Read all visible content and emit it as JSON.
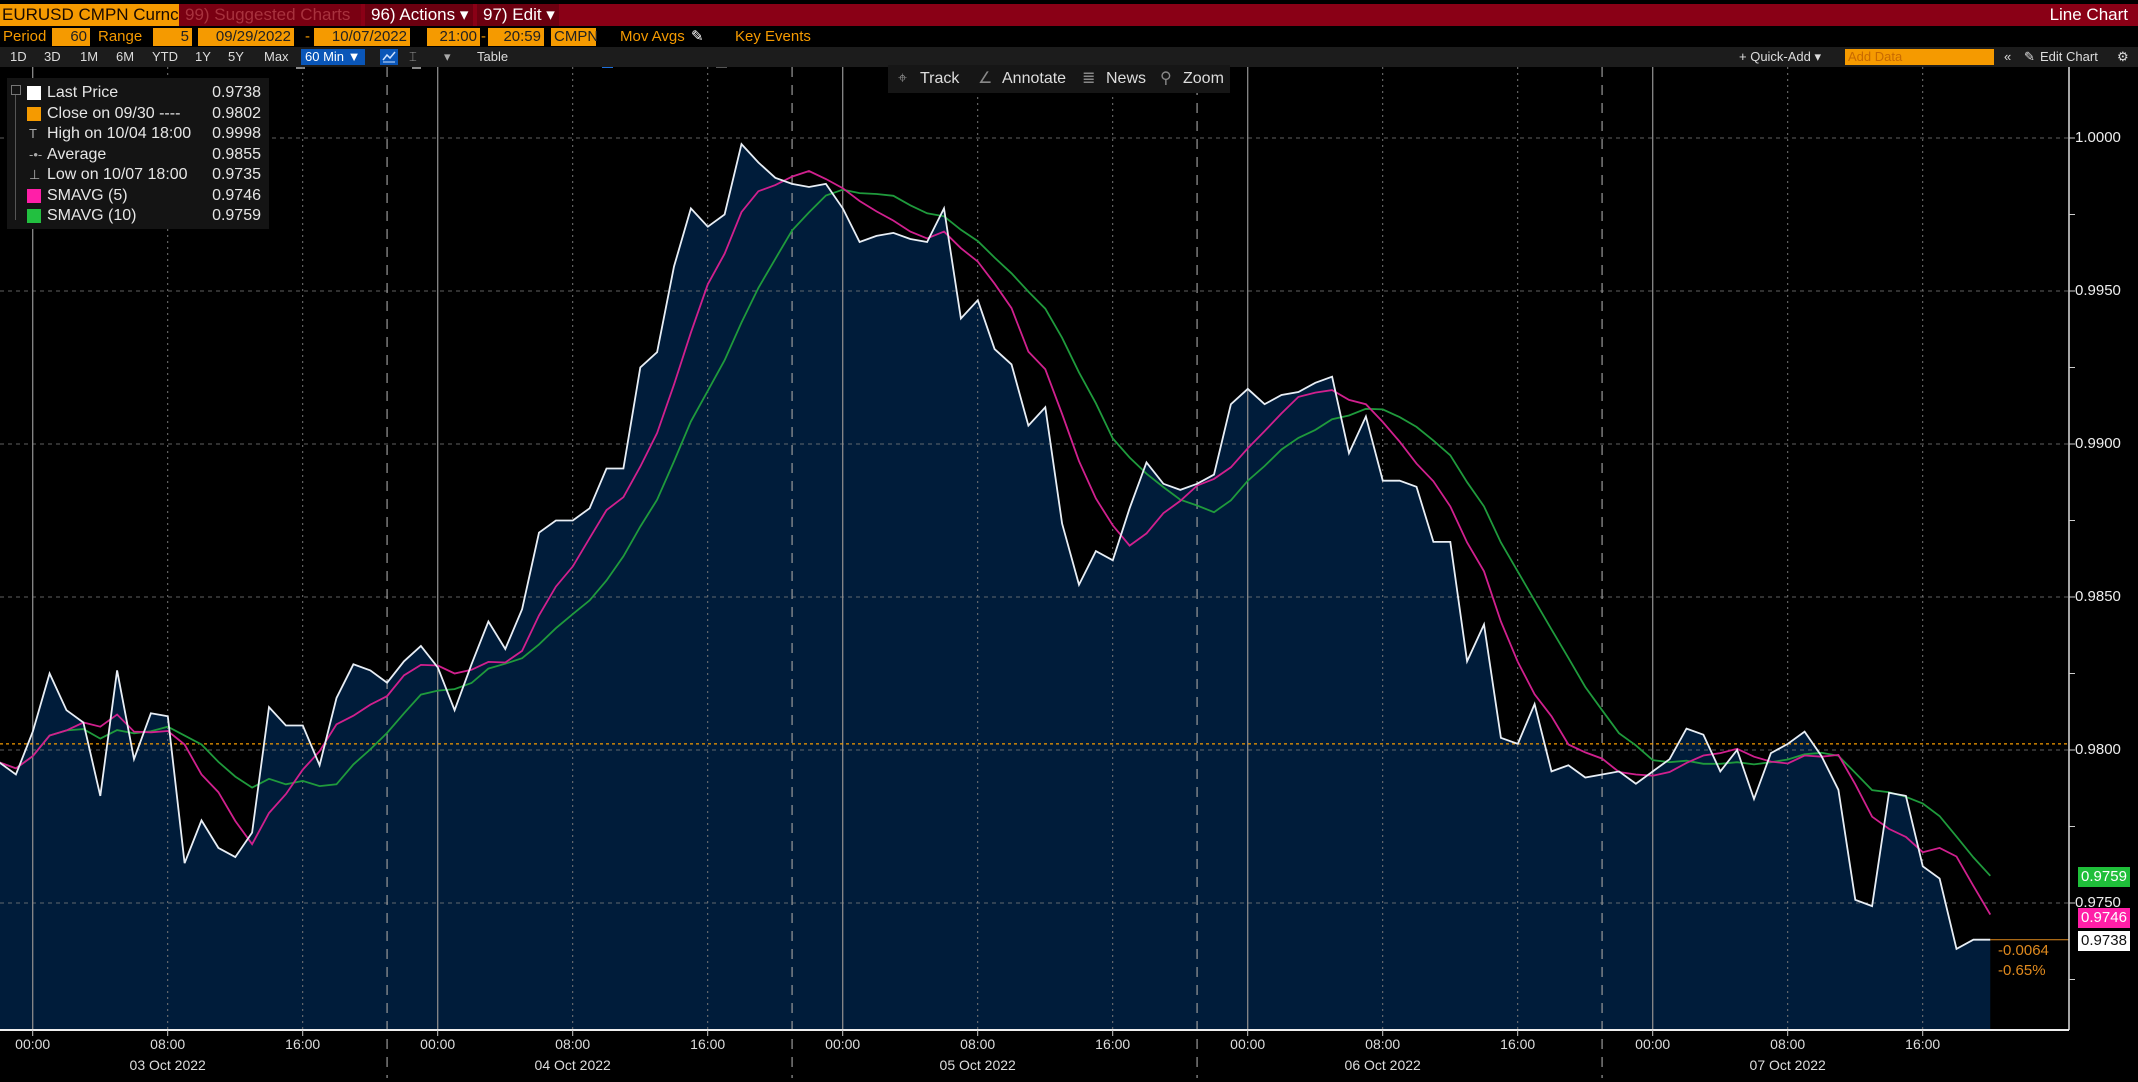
{
  "header": {
    "ticker": "EURUSD CMPN Curnc",
    "suggested": "99) Suggested Charts",
    "actions": "96) Actions ▾",
    "edit": "97) Edit ▾",
    "chart_type": "Line Chart"
  },
  "settings": {
    "period_label": "Period",
    "period_value": "60",
    "range_label": "Range",
    "range_value": "5",
    "start_date": "09/29/2022",
    "end_date": "10/07/2022",
    "dash": "-",
    "start_time": "21:00",
    "end_time": "20:59",
    "source": "CMPN",
    "mov_avgs_label": "Mov Avgs",
    "mov_avgs_checked": true,
    "key_events_label": "Key Events",
    "key_events_checked": false
  },
  "toolbar": {
    "ranges": [
      "1D",
      "3D",
      "1M",
      "6M",
      "YTD",
      "1Y",
      "5Y",
      "Max"
    ],
    "interval": "60 Min ▼",
    "dropdown": "▾",
    "table": "Table",
    "quick_add": "+ Quick-Add ▾",
    "add_data_placeholder": "Add Data",
    "collapse": "«",
    "edit_chart": "Edit Chart",
    "icons": {
      "line": "line-chart-icon",
      "bar": "bar-chart-icon",
      "gear": "gear-icon",
      "pencil": "pencil-icon"
    }
  },
  "chart_tools": {
    "track": "Track",
    "annotate": "Annotate",
    "news": "News",
    "zoom": "Zoom"
  },
  "legend": [
    {
      "label": "Last Price",
      "value": "0.9738",
      "color": "#ffffff",
      "kind": "swatch"
    },
    {
      "label": "Close on 09/30 ----",
      "value": "0.9802",
      "color": "#f59a00",
      "kind": "swatch"
    },
    {
      "label": "High on 10/04 18:00",
      "value": "0.9998",
      "kind": "high"
    },
    {
      "label": "Average",
      "value": "0.9855",
      "kind": "average"
    },
    {
      "label": "Low on 10/07 18:00",
      "value": "0.9735",
      "kind": "low"
    },
    {
      "label": "SMAVG (5)",
      "value": "0.9746",
      "color": "#ff1fa8",
      "kind": "swatch"
    },
    {
      "label": "SMAVG (10)",
      "value": "0.9759",
      "color": "#22c040",
      "kind": "swatch"
    }
  ],
  "tags": {
    "sma10": "0.9759",
    "sma5": "0.9746",
    "last": "0.9738",
    "change": "-0.0064",
    "change_pct": "-0.65%"
  },
  "chart_data": {
    "type": "area",
    "ylim": [
      0.9715,
      1.0025
    ],
    "yticks": [
      "1.0000",
      "0.9950",
      "0.9900",
      "0.9850",
      "0.9800",
      "0.9750"
    ],
    "grid": true,
    "legend_placement": "top-left",
    "reference_lines": {
      "close": 0.9802
    },
    "colors": {
      "last_price": "#e8eef5",
      "fill": "#001c3a",
      "sma5": "#d0208e",
      "sma10": "#1f9a3c",
      "close": "#f59a00"
    },
    "xtick_times": [
      "00:00",
      "08:00",
      "16:00"
    ],
    "xtick_dates": [
      "03 Oct 2022",
      "04 Oct 2022",
      "05 Oct 2022",
      "06 Oct 2022",
      "07 Oct 2022"
    ],
    "sma_periods": [
      5,
      10
    ],
    "x": [
      "10/02 22:00",
      "10/02 23:00",
      "10/03 00:00",
      "10/03 01:00",
      "10/03 02:00",
      "10/03 03:00",
      "10/03 04:00",
      "10/03 05:00",
      "10/03 06:00",
      "10/03 07:00",
      "10/03 08:00",
      "10/03 09:00",
      "10/03 10:00",
      "10/03 11:00",
      "10/03 12:00",
      "10/03 13:00",
      "10/03 14:00",
      "10/03 15:00",
      "10/03 16:00",
      "10/03 17:00",
      "10/03 18:00",
      "10/03 19:00",
      "10/03 20:00",
      "10/03 21:00",
      "10/03 22:00",
      "10/03 23:00",
      "10/04 00:00",
      "10/04 01:00",
      "10/04 02:00",
      "10/04 03:00",
      "10/04 04:00",
      "10/04 05:00",
      "10/04 06:00",
      "10/04 07:00",
      "10/04 08:00",
      "10/04 09:00",
      "10/04 10:00",
      "10/04 11:00",
      "10/04 12:00",
      "10/04 13:00",
      "10/04 14:00",
      "10/04 15:00",
      "10/04 16:00",
      "10/04 17:00",
      "10/04 18:00",
      "10/04 19:00",
      "10/04 20:00",
      "10/04 21:00",
      "10/04 22:00",
      "10/04 23:00",
      "10/05 00:00",
      "10/05 01:00",
      "10/05 02:00",
      "10/05 03:00",
      "10/05 04:00",
      "10/05 05:00",
      "10/05 06:00",
      "10/05 07:00",
      "10/05 08:00",
      "10/05 09:00",
      "10/05 10:00",
      "10/05 11:00",
      "10/05 12:00",
      "10/05 13:00",
      "10/05 14:00",
      "10/05 15:00",
      "10/05 16:00",
      "10/05 17:00",
      "10/05 18:00",
      "10/05 19:00",
      "10/05 20:00",
      "10/05 21:00",
      "10/05 22:00",
      "10/05 23:00",
      "10/06 00:00",
      "10/06 01:00",
      "10/06 02:00",
      "10/06 03:00",
      "10/06 04:00",
      "10/06 05:00",
      "10/06 06:00",
      "10/06 07:00",
      "10/06 08:00",
      "10/06 09:00",
      "10/06 10:00",
      "10/06 11:00",
      "10/06 12:00",
      "10/06 13:00",
      "10/06 14:00",
      "10/06 15:00",
      "10/06 16:00",
      "10/06 17:00",
      "10/06 18:00",
      "10/06 19:00",
      "10/06 20:00",
      "10/06 21:00",
      "10/06 22:00",
      "10/06 23:00",
      "10/07 00:00",
      "10/07 01:00",
      "10/07 02:00",
      "10/07 03:00",
      "10/07 04:00",
      "10/07 05:00",
      "10/07 06:00",
      "10/07 07:00",
      "10/07 08:00",
      "10/07 09:00",
      "10/07 10:00",
      "10/07 11:00",
      "10/07 12:00",
      "10/07 13:00",
      "10/07 14:00",
      "10/07 15:00",
      "10/07 16:00",
      "10/07 17:00",
      "10/07 18:00",
      "10/07 19:00",
      "10/07 20:00"
    ],
    "series": [
      {
        "name": "Last Price",
        "values": [
          0.9796,
          0.9792,
          0.9806,
          0.9825,
          0.9813,
          0.9809,
          0.9785,
          0.9826,
          0.9797,
          0.9812,
          0.9811,
          0.9763,
          0.9777,
          0.9768,
          0.9765,
          0.9773,
          0.9814,
          0.9808,
          0.9808,
          0.9795,
          0.9817,
          0.9828,
          0.9826,
          0.9822,
          0.9829,
          0.9834,
          0.9827,
          0.9813,
          0.9828,
          0.9842,
          0.9833,
          0.9846,
          0.9871,
          0.9875,
          0.9875,
          0.9879,
          0.9892,
          0.9892,
          0.9925,
          0.993,
          0.9958,
          0.9977,
          0.9971,
          0.9975,
          0.9998,
          0.9992,
          0.9987,
          0.9985,
          0.9984,
          0.9985,
          0.9977,
          0.9966,
          0.9968,
          0.9969,
          0.9967,
          0.9966,
          0.9977,
          0.9941,
          0.9947,
          0.9931,
          0.9926,
          0.9906,
          0.9912,
          0.9874,
          0.9854,
          0.9865,
          0.9862,
          0.9879,
          0.9894,
          0.9887,
          0.9885,
          0.9887,
          0.989,
          0.9913,
          0.9918,
          0.9913,
          0.9916,
          0.9917,
          0.992,
          0.9922,
          0.9897,
          0.9909,
          0.9888,
          0.9888,
          0.9886,
          0.9868,
          0.9868,
          0.9829,
          0.9841,
          0.9804,
          0.9802,
          0.9815,
          0.9793,
          0.9795,
          0.9791,
          0.9792,
          0.9793,
          0.9789,
          0.9793,
          0.9797,
          0.9807,
          0.9805,
          0.9793,
          0.98,
          0.9784,
          0.9799,
          0.9802,
          0.9806,
          0.9798,
          0.9787,
          0.9751,
          0.9749,
          0.9786,
          0.9785,
          0.9762,
          0.9758,
          0.9735,
          0.9738,
          0.9738
        ]
      },
      {
        "name": "SMAVG (5)"
      },
      {
        "name": "SMAVG (10)"
      }
    ]
  }
}
